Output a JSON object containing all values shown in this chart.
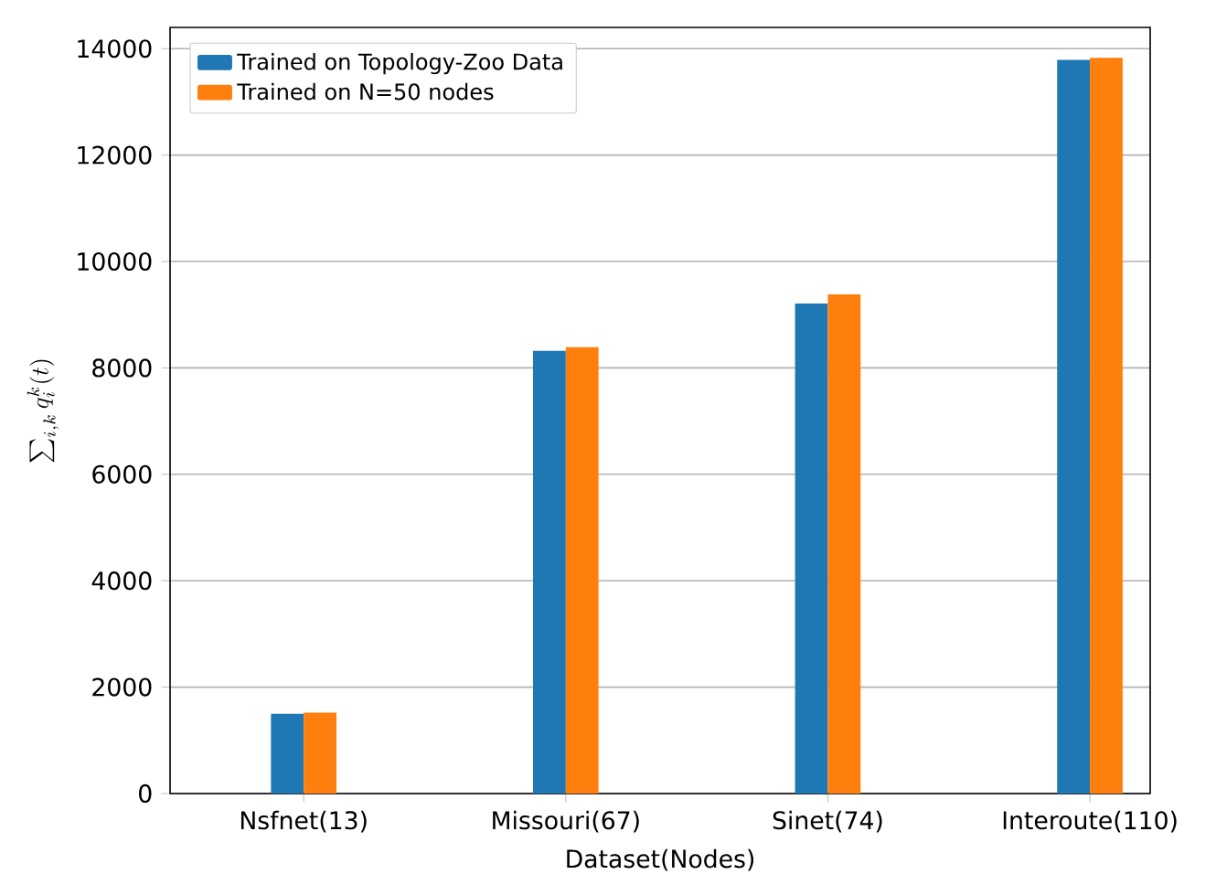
{
  "chart_data": {
    "type": "bar",
    "xlabel": "Dataset(Nodes)",
    "ylabel": "\\sum_{i,k} q_i^k(t)",
    "categories": [
      "Nsfnet(13)",
      "Missouri(67)",
      "Sinet(74)",
      "Interoute(110)"
    ],
    "series": [
      {
        "name": "Trained on Topology-Zoo Data",
        "color": "#1f77b4",
        "values": [
          1500,
          8320,
          9210,
          13790
        ]
      },
      {
        "name": "Trained on N=50 nodes",
        "color": "#ff7f0e",
        "values": [
          1520,
          8390,
          9380,
          13830
        ]
      }
    ],
    "ylim": [
      0,
      14400
    ],
    "yticks": [
      0,
      2000,
      4000,
      6000,
      8000,
      10000,
      12000,
      14000
    ],
    "grid": "y",
    "legend": "top left"
  }
}
